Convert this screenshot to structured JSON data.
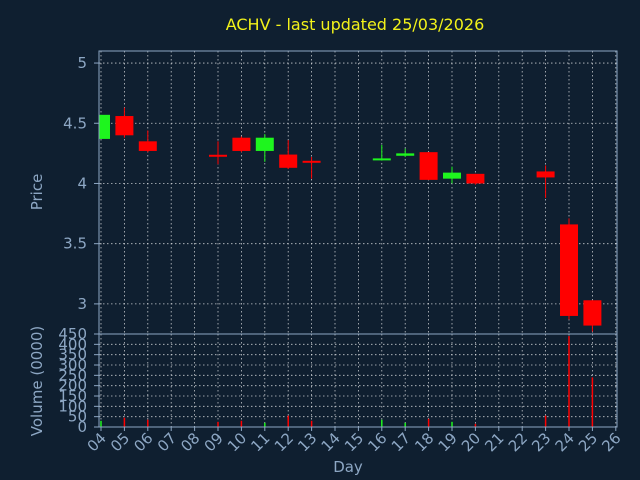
{
  "chart_data": [
    {
      "type": "candlestick",
      "title": "ACHV - last updated 25/03/2026",
      "xlabel": "Day",
      "ylabel": "Price",
      "ylim": [
        2.75,
        5.1
      ],
      "yticks": [
        3,
        3.5,
        4,
        4.5,
        5
      ],
      "ytick_labels": [
        "3",
        "3.5",
        "4",
        "4.5",
        "5"
      ],
      "categories": [
        "04",
        "05",
        "06",
        "07",
        "08",
        "09",
        "10",
        "11",
        "12",
        "13",
        "14",
        "15",
        "16",
        "17",
        "18",
        "19",
        "20",
        "21",
        "22",
        "23",
        "24",
        "25",
        "26"
      ],
      "grid": true,
      "candles": [
        {
          "day": 4,
          "open": 4.37,
          "close": 4.57,
          "high": 4.57,
          "low": 4.37
        },
        {
          "day": 5,
          "open": 4.56,
          "close": 4.4,
          "high": 4.63,
          "low": 4.38
        },
        {
          "day": 6,
          "open": 4.35,
          "close": 4.27,
          "high": 4.44,
          "low": 4.26
        },
        {
          "day": 9,
          "open": 4.23,
          "close": 4.22,
          "high": 4.35,
          "low": 4.16
        },
        {
          "day": 10,
          "open": 4.38,
          "close": 4.27,
          "high": 4.39,
          "low": 4.26
        },
        {
          "day": 11,
          "open": 4.27,
          "close": 4.38,
          "high": 4.41,
          "low": 4.18
        },
        {
          "day": 12,
          "open": 4.24,
          "close": 4.13,
          "high": 4.36,
          "low": 4.12
        },
        {
          "day": 13,
          "open": 4.18,
          "close": 4.17,
          "high": 4.22,
          "low": 4.04
        },
        {
          "day": 16,
          "open": 4.19,
          "close": 4.2,
          "high": 4.32,
          "low": 4.19
        },
        {
          "day": 17,
          "open": 4.23,
          "close": 4.25,
          "high": 4.29,
          "low": 4.22
        },
        {
          "day": 18,
          "open": 4.26,
          "close": 4.03,
          "high": 4.26,
          "low": 4.03
        },
        {
          "day": 19,
          "open": 4.04,
          "close": 4.09,
          "high": 4.14,
          "low": 4.0
        },
        {
          "day": 20,
          "open": 4.08,
          "close": 4.0,
          "high": 4.08,
          "low": 3.99
        },
        {
          "day": 23,
          "open": 4.1,
          "close": 4.05,
          "high": 4.15,
          "low": 3.88
        },
        {
          "day": 24,
          "open": 3.66,
          "close": 2.9,
          "high": 3.71,
          "low": 2.87
        },
        {
          "day": 25,
          "open": 3.03,
          "close": 2.82,
          "high": 3.03,
          "low": 2.77
        }
      ]
    },
    {
      "type": "bar",
      "xlabel": "Day",
      "ylabel": "Volume (0000)",
      "ylim": [
        0,
        450
      ],
      "yticks": [
        0,
        50,
        100,
        150,
        200,
        250,
        300,
        350,
        400,
        450
      ],
      "ytick_labels": [
        "0",
        "50",
        "100",
        "150",
        "200",
        "250",
        "300",
        "350",
        "400",
        "450"
      ],
      "categories": [
        "04",
        "05",
        "06",
        "07",
        "08",
        "09",
        "10",
        "11",
        "12",
        "13",
        "14",
        "15",
        "16",
        "17",
        "18",
        "19",
        "20",
        "21",
        "22",
        "23",
        "24",
        "25",
        "26"
      ],
      "grid": true,
      "volumes": [
        {
          "day": 4,
          "value": 30,
          "up": true
        },
        {
          "day": 5,
          "value": 45,
          "up": false
        },
        {
          "day": 6,
          "value": 35,
          "up": false
        },
        {
          "day": 9,
          "value": 25,
          "up": false
        },
        {
          "day": 10,
          "value": 30,
          "up": false
        },
        {
          "day": 11,
          "value": 20,
          "up": true
        },
        {
          "day": 12,
          "value": 55,
          "up": false
        },
        {
          "day": 13,
          "value": 30,
          "up": false
        },
        {
          "day": 16,
          "value": 35,
          "up": true
        },
        {
          "day": 17,
          "value": 20,
          "up": true
        },
        {
          "day": 18,
          "value": 40,
          "up": false
        },
        {
          "day": 19,
          "value": 25,
          "up": true
        },
        {
          "day": 20,
          "value": 15,
          "up": false
        },
        {
          "day": 23,
          "value": 55,
          "up": false
        },
        {
          "day": 24,
          "value": 440,
          "up": false
        },
        {
          "day": 25,
          "value": 240,
          "up": false
        }
      ]
    }
  ],
  "colors": {
    "background": "#0f1f30",
    "axis": "#8da7c4",
    "title": "#f2f21a",
    "up": "#1ef51e",
    "down": "#ff0000",
    "grid": "#ffffff"
  }
}
